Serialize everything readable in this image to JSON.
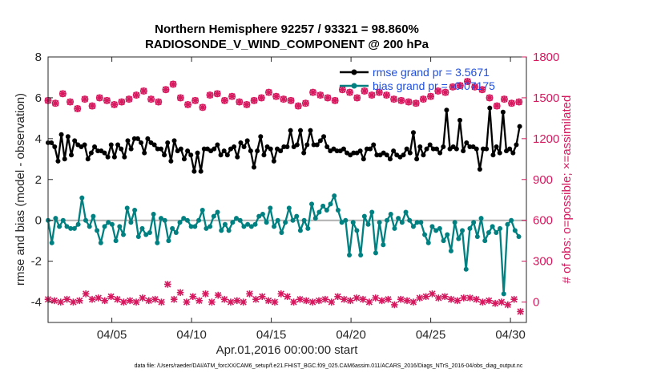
{
  "chart_data": {
    "type": "line",
    "title": "Northern Hemisphere 92257 / 93321 = 98.860%",
    "subtitle": "RADIOSONDE_V_WIND_COMPONENT @ 200 hPa",
    "xlabel": "Apr.01,2016 00:00:00 start",
    "ylabel": "rmse and bias (model - observation)",
    "y2label": "# of obs: o=possible; ×=assimilated",
    "footnote": "data file: /Users/raeder/DAI/ATM_forcXX/CAM6_setup/f.e21.FHIST_BGC.f09_025.CAM6assim.011/ACARS_2016/Diags_NTrS_2016-04/obs_diag_output.nc",
    "xlim": [
      1,
      31
    ],
    "ylim": [
      -5,
      8
    ],
    "y2lim": [
      -150,
      1800
    ],
    "x_ticks": [
      5,
      10,
      15,
      20,
      25,
      30
    ],
    "x_tick_labels": [
      "04/05",
      "04/10",
      "04/15",
      "04/20",
      "04/25",
      "04/30"
    ],
    "y_ticks": [
      -4,
      -2,
      0,
      2,
      4,
      6,
      8
    ],
    "y2_ticks": [
      0,
      300,
      600,
      900,
      1200,
      1500,
      1800
    ],
    "zero_line": 0,
    "legend": [
      "rmse grand pr = 3.5671",
      "bias grand pr = -0.07175"
    ],
    "colors": {
      "rmse": "#000000",
      "bias": "#008080",
      "obs": "#d6185e",
      "zero": "#b0b0b0",
      "legend_text": "#1f4fe0"
    },
    "series": [
      {
        "name": "rmse",
        "axis": "left",
        "values": [
          3.8,
          3.8,
          3.6,
          2.9,
          4.2,
          3.0,
          4.1,
          3.2,
          3.9,
          3.7,
          3.6,
          3.7,
          3.0,
          3.3,
          3.6,
          3.4,
          3.4,
          3.3,
          3.1,
          3.7,
          3.1,
          3.7,
          3.5,
          3.1,
          3.9,
          3.5,
          4.0,
          4.0,
          3.8,
          3.3,
          4.0,
          3.8,
          3.7,
          3.5,
          3.5,
          3.2,
          3.8,
          2.9,
          3.9,
          3.4,
          3.5,
          3.0,
          3.4,
          3.2,
          2.4,
          3.3,
          2.4,
          3.5,
          3.5,
          3.4,
          3.5,
          3.7,
          3.2,
          3.4,
          3.2,
          3.5,
          3.6,
          3.1,
          3.8,
          3.6,
          3.9,
          3.4,
          2.6,
          3.4,
          4.1,
          3.2,
          3.6,
          3.5,
          2.9,
          3.5,
          3.4,
          3.6,
          3.6,
          4.4,
          3.6,
          3.7,
          4.4,
          3.3,
          3.7,
          4.4,
          3.7,
          3.7,
          3.9,
          4.1,
          3.6,
          3.4,
          3.5,
          3.4,
          3.4,
          3.5,
          3.3,
          3.2,
          3.3,
          3.3,
          3.4,
          3.0,
          3.5,
          3.5,
          3.7,
          3.2,
          3.2,
          3.3,
          3.2,
          3.0,
          3.4,
          3.2,
          3.1,
          3.2,
          3.5,
          3.3,
          4.3,
          3.0,
          3.6,
          3.2,
          3.5,
          3.7,
          3.5,
          3.5,
          3.3,
          3.6,
          5.4,
          3.5,
          3.6,
          3.5,
          4.9,
          3.4,
          3.8,
          3.6,
          3.6,
          3.5,
          2.5,
          3.5,
          3.5,
          5.5,
          3.2,
          3.6,
          3.3,
          5.3,
          3.4,
          3.5,
          3.3,
          3.7,
          4.6
        ],
        "x_start": 1.0,
        "x_step": 0.2083
      },
      {
        "name": "bias",
        "axis": "left",
        "values": [
          0.0,
          -1.1,
          0.1,
          -0.3,
          0.0,
          -0.3,
          -0.4,
          -0.4,
          -0.2,
          1.1,
          0.0,
          -0.3,
          0.2,
          -0.5,
          -1.1,
          -0.3,
          -0.1,
          -0.2,
          -1.0,
          -0.3,
          -0.7,
          0.6,
          -0.1,
          0.5,
          -0.8,
          -0.4,
          -0.7,
          -0.6,
          0.3,
          -1.1,
          0.1,
          0.0,
          -1.0,
          -0.4,
          -0.6,
          -0.1,
          0.1,
          0.0,
          -0.3,
          -0.3,
          0.0,
          0.5,
          -0.4,
          -0.3,
          0.2,
          0.4,
          -0.5,
          -0.2,
          -0.5,
          -0.1,
          0.1,
          0.0,
          -0.3,
          -0.2,
          -0.3,
          -0.2,
          0.2,
          0.3,
          -0.1,
          0.6,
          -0.3,
          0.0,
          -0.6,
          -0.1,
          0.6,
          0.0,
          0.2,
          -0.5,
          0.0,
          -0.4,
          0.8,
          0.1,
          0.4,
          0.7,
          0.5,
          0.8,
          1.2,
          0.5,
          -0.1,
          0.0,
          -1.7,
          -0.1,
          -0.5,
          -1.7,
          0.2,
          -0.2,
          0.4,
          -1.6,
          -0.1,
          -1.2,
          0.0,
          0.3,
          -0.4,
          0.1,
          -0.1,
          0.4,
          0.0,
          -0.3,
          -0.1,
          -0.1,
          -0.7,
          -1.1,
          -0.3,
          -0.5,
          -0.4,
          -1.0,
          -0.7,
          -1.5,
          -0.1,
          -0.9,
          -0.5,
          -2.4,
          -0.4,
          -0.1,
          -0.8,
          0.1,
          -1.0,
          -0.6,
          -0.3,
          -0.6,
          -0.4,
          -3.6,
          -0.2,
          0.0,
          -0.5,
          -0.8
        ],
        "x_start": 1.0,
        "x_step": 0.2362
      },
      {
        "name": "obs_possible",
        "axis": "right",
        "values": [
          1480,
          1460,
          1530,
          1470,
          1420,
          1490,
          1440,
          1500,
          1480,
          1450,
          1470,
          1490,
          1520,
          1550,
          1490,
          1470,
          1560,
          1600,
          1500,
          1450,
          1480,
          1430,
          1520,
          1530,
          1480,
          1510,
          1470,
          1450,
          1480,
          1500,
          1540,
          1510,
          1490,
          1480,
          1440,
          1460,
          1540,
          1520,
          1500,
          1480,
          1560,
          1540,
          1500,
          1550,
          1520,
          1540,
          1520,
          1490,
          1480,
          1470,
          1460,
          1490,
          1510,
          1550,
          1540,
          1580,
          1590,
          1620,
          1580,
          1560,
          1500,
          1440,
          1490,
          1460,
          1470
        ],
        "x_start": 1.0,
        "x_step": 0.4615
      },
      {
        "name": "obs_assimilated",
        "axis": "right",
        "values": [
          20,
          10,
          0,
          20,
          0,
          10,
          60,
          20,
          30,
          10,
          40,
          20,
          0,
          10,
          0,
          30,
          10,
          20,
          0,
          130,
          20,
          70,
          0,
          40,
          10,
          60,
          0,
          50,
          20,
          0,
          10,
          0,
          60,
          20,
          40,
          10,
          0,
          60,
          40,
          0,
          20,
          10,
          0,
          10,
          20,
          0,
          40,
          20,
          10,
          30,
          20,
          0,
          30,
          10,
          20,
          -20,
          20,
          10,
          0,
          30,
          40,
          60,
          30,
          40,
          20,
          10,
          30,
          30,
          20,
          0,
          10,
          -10,
          0,
          -20,
          20,
          -70
        ],
        "x_start": 1.0,
        "x_step": 0.395
      }
    ]
  }
}
